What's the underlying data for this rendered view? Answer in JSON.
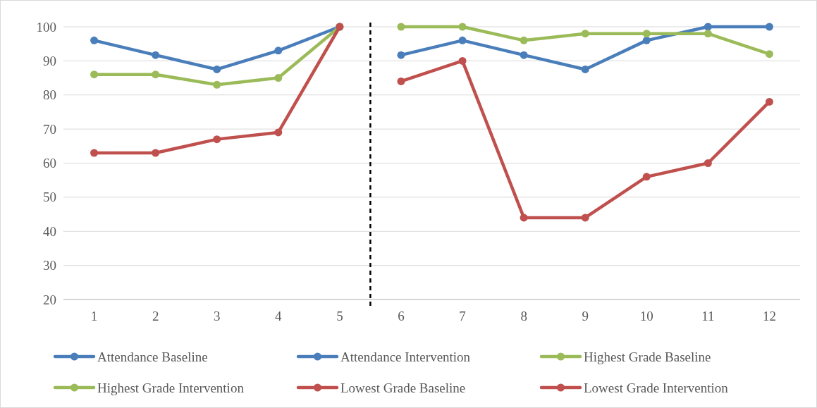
{
  "chart_data": {
    "type": "line",
    "x": [
      1,
      2,
      3,
      4,
      5,
      6,
      7,
      8,
      9,
      10,
      11,
      12
    ],
    "xlim": [
      0.5,
      12.5
    ],
    "xticks": [
      1,
      2,
      3,
      4,
      5,
      6,
      7,
      8,
      9,
      10,
      11,
      12
    ],
    "ylim": [
      20,
      100
    ],
    "yticks": [
      20,
      30,
      40,
      50,
      60,
      70,
      80,
      90,
      100
    ],
    "grid": "y",
    "legend": "bottom",
    "marker": "circle",
    "line_style": "solid",
    "ref_lines": [
      {
        "axis": "x",
        "value": 5.5,
        "color": "#000000",
        "line_style": "dashed"
      }
    ],
    "series": [
      {
        "name": "Attendance Baseline",
        "color": "#4a7ebb",
        "values": [
          96,
          91.7,
          87.5,
          93,
          100,
          null,
          null,
          null,
          null,
          null,
          null,
          null
        ]
      },
      {
        "name": "Attendance Intervention",
        "color": "#4a7ebb",
        "values": [
          null,
          null,
          null,
          null,
          null,
          91.7,
          96,
          91.7,
          87.5,
          96,
          100,
          100
        ]
      },
      {
        "name": "Highest Grade Baseline",
        "color": "#9bbb59",
        "values": [
          86,
          86,
          83,
          85,
          100,
          null,
          null,
          null,
          null,
          null,
          null,
          null
        ]
      },
      {
        "name": "Highest Grade Intervention",
        "color": "#9bbb59",
        "values": [
          null,
          null,
          null,
          null,
          null,
          100,
          100,
          96,
          98,
          98,
          98,
          92
        ]
      },
      {
        "name": "Lowest Grade Baseline",
        "color": "#c0504d",
        "values": [
          63,
          63,
          67,
          69,
          100,
          null,
          null,
          null,
          null,
          null,
          null,
          null
        ]
      },
      {
        "name": "Lowest Grade Intervention",
        "color": "#c0504d",
        "values": [
          null,
          null,
          null,
          null,
          null,
          84,
          90,
          44,
          44,
          56,
          60,
          78
        ]
      }
    ]
  }
}
